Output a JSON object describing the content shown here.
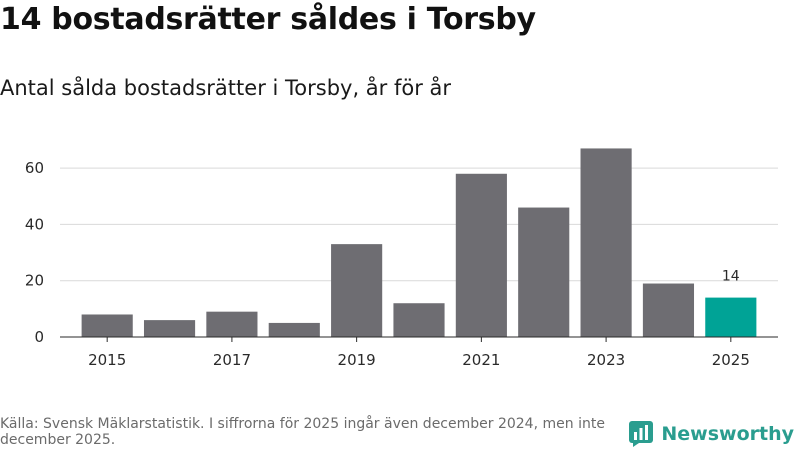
{
  "header": {
    "title": "14 bostadsrätter såldes i Torsby",
    "subtitle": "Antal sålda bostadsrätter i Torsby, år för år"
  },
  "footer": {
    "source": "Källa: Svensk Mäklarstatistik. I siffrorna för 2025 ingår även december 2024, men inte december 2025."
  },
  "brand": {
    "name": "Newsworthy",
    "icon": "newsworthy-logo-icon",
    "color": "#2a9d8f"
  },
  "colors": {
    "bar": "#6e6d72",
    "highlight": "#00a396",
    "grid": "#d9d9d9",
    "axis": "#2a2a2a"
  },
  "chart_data": {
    "type": "bar",
    "title": "14 bostadsrätter såldes i Torsby",
    "subtitle": "Antal sålda bostadsrätter i Torsby, år för år",
    "categories": [
      "2015",
      "2016",
      "2017",
      "2018",
      "2019",
      "2020",
      "2021",
      "2022",
      "2023",
      "2024",
      "2025"
    ],
    "values": [
      8,
      6,
      9,
      5,
      33,
      12,
      58,
      46,
      67,
      19,
      14
    ],
    "highlight_index": 10,
    "data_labels": [
      {
        "index": 10,
        "text": "14"
      }
    ],
    "xticks": [
      "2015",
      "2017",
      "2019",
      "2021",
      "2023",
      "2025"
    ],
    "yticks": [
      0,
      20,
      40,
      60
    ],
    "ylim": [
      0,
      70
    ],
    "grid": "horizontal",
    "legend": "none",
    "xlabel": "",
    "ylabel": ""
  }
}
